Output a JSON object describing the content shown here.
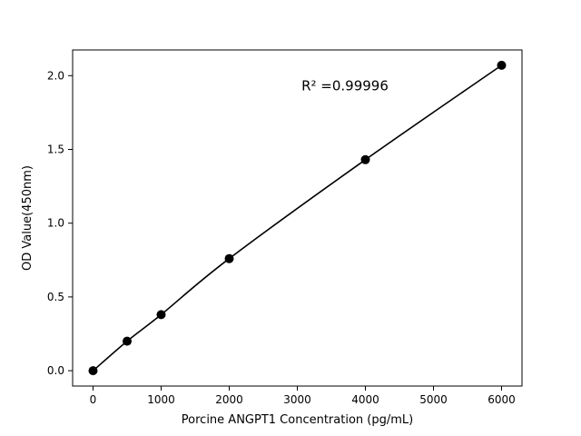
{
  "chart_data": {
    "type": "line",
    "title": "",
    "xlabel": "Porcine ANGPT1 Concentration (pg/mL)",
    "ylabel": "OD Value(450nm)",
    "x": [
      0,
      500,
      1000,
      2000,
      4000,
      6000
    ],
    "y": [
      0.0,
      0.2,
      0.38,
      0.76,
      1.43,
      2.07
    ],
    "xlim": [
      -300,
      6300
    ],
    "ylim": [
      -0.104,
      2.174
    ],
    "xticks": [
      0,
      1000,
      2000,
      3000,
      4000,
      5000,
      6000
    ],
    "yticks": [
      0.0,
      0.5,
      1.0,
      1.5,
      2.0
    ],
    "annotation": {
      "text": "R² =0.99996",
      "x": 3700,
      "y": 1.9
    },
    "line_color": "#000000",
    "marker_color": "#000000",
    "axis_color": "#000000",
    "background": "#ffffff",
    "legend": null,
    "grid": false
  }
}
